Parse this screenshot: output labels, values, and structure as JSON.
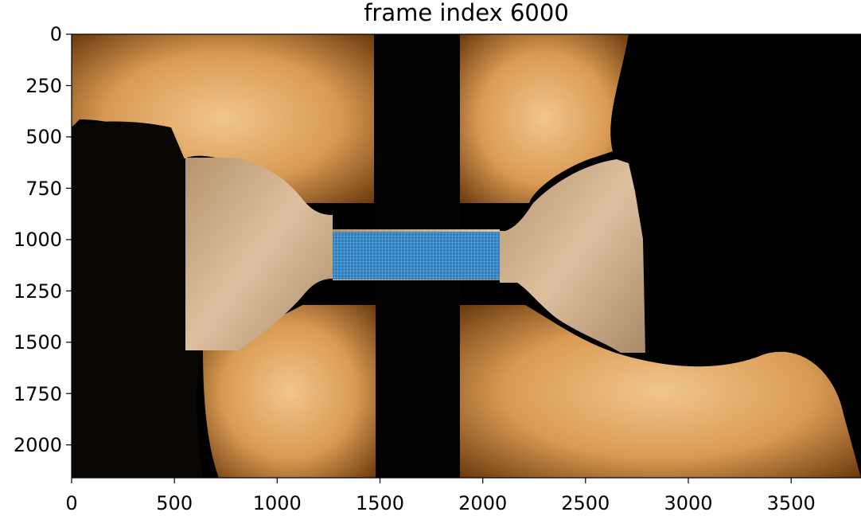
{
  "title": "frame index 6000",
  "axes": {
    "x": {
      "range": [
        0,
        3840
      ],
      "ticks": [
        0,
        500,
        1000,
        1500,
        2000,
        2500,
        3000,
        3500
      ],
      "tick_labels": [
        "0",
        "500",
        "1000",
        "1500",
        "2000",
        "2500",
        "3000",
        "3500"
      ]
    },
    "y": {
      "range": [
        0,
        2160
      ],
      "inverted": true,
      "ticks": [
        0,
        250,
        500,
        750,
        1000,
        1250,
        1500,
        1750,
        2000
      ],
      "tick_labels": [
        "0",
        "250",
        "500",
        "750",
        "1000",
        "1250",
        "1500",
        "1750",
        "2000"
      ]
    }
  },
  "image": {
    "subject": "dog-bone tensile specimen clamped between grips, photographed under warm light",
    "overlay": {
      "color": "#2f7fbf",
      "x_range": [
        1270,
        2080
      ],
      "y_range": [
        960,
        1190
      ]
    }
  },
  "colors": {
    "specimen": "#c9a57a",
    "grips": "#d79a55",
    "background": "#000000"
  }
}
